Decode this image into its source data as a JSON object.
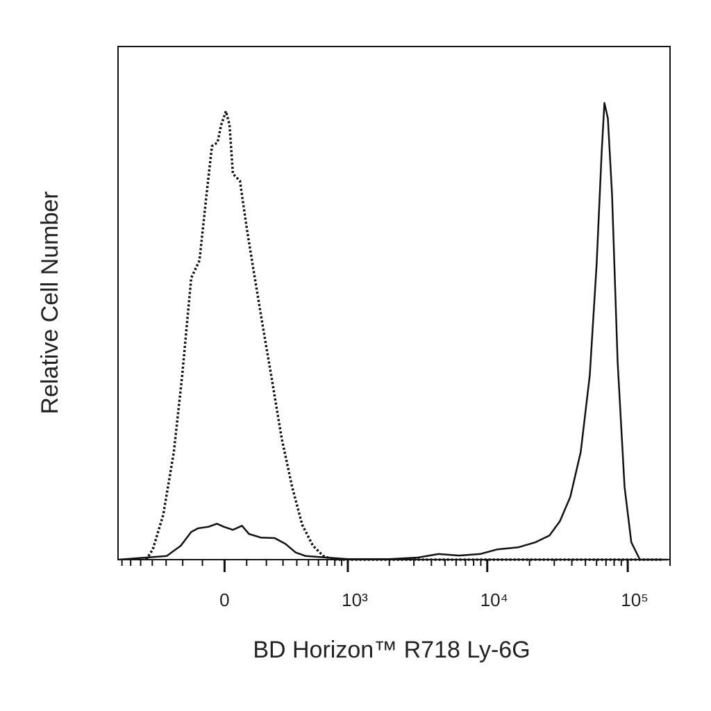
{
  "chart_data": {
    "type": "histogram-overlay",
    "xlabel": "BD Horizon™ R718 Ly-6G",
    "ylabel": "Relative Cell Number",
    "xscale": "biexponential",
    "xlim": [
      -750,
      200000
    ],
    "ylim": [
      0,
      100
    ],
    "xticks": [
      0,
      {
        "value": 1000,
        "label": "10³"
      },
      {
        "value": 10000,
        "label": "10⁴"
      },
      {
        "value": 100000,
        "label": "10⁵"
      }
    ],
    "xminorticks": [
      -700,
      -600,
      -500,
      -400,
      -300,
      -200,
      -100,
      100,
      200,
      300,
      400,
      500,
      600,
      700,
      800,
      900,
      2000,
      3000,
      4000,
      5000,
      6000,
      7000,
      8000,
      9000,
      20000,
      30000,
      40000,
      50000,
      60000,
      70000,
      80000,
      90000,
      200000
    ],
    "series": [
      {
        "color": "#111111",
        "linestyle": "dotted",
        "x": [
          -450,
          -396,
          -319,
          -251,
          -203,
          -155,
          -114,
          -81,
          -56,
          -31,
          -15,
          6,
          22,
          37,
          69,
          101,
          134,
          181,
          227,
          291,
          364,
          444,
          543,
          656,
          786,
          1000,
          9000,
          180000
        ],
        "values": [
          0,
          2.0,
          8.8,
          21.0,
          35.9,
          54.9,
          58.3,
          71.1,
          80.6,
          81.3,
          84.7,
          87.4,
          84.7,
          75.2,
          73.8,
          64.4,
          56.2,
          45.4,
          35.9,
          23.7,
          14.2,
          6.8,
          2.7,
          0.7,
          0,
          0,
          0,
          0
        ]
      },
      {
        "color": "#111111",
        "linestyle": "solid",
        "x": [
          -740,
          -296,
          -211,
          -155,
          -121,
          -72,
          -34,
          -3,
          37,
          78,
          111,
          170,
          248,
          315,
          391,
          475,
          697,
          1000,
          2000,
          3200,
          4500,
          6300,
          8900,
          11800,
          16600,
          22100,
          27700,
          32900,
          39000,
          46300,
          53700,
          60100,
          65200,
          68200,
          72200,
          77300,
          84700,
          94900,
          106000,
          122000,
          192000
        ],
        "values": [
          0,
          0.7,
          2.7,
          5.4,
          6.1,
          6.4,
          7.0,
          6.4,
          5.8,
          6.6,
          5.0,
          4.3,
          4.2,
          3.1,
          1.4,
          0.7,
          0.4,
          0.1,
          0.1,
          0.4,
          1.1,
          0.8,
          1.1,
          2.0,
          2.4,
          3.4,
          4.7,
          7.5,
          12.2,
          21.0,
          35.9,
          57.6,
          79.3,
          89.0,
          86.0,
          71.1,
          38.6,
          14.2,
          3.4,
          0,
          0
        ]
      }
    ]
  }
}
